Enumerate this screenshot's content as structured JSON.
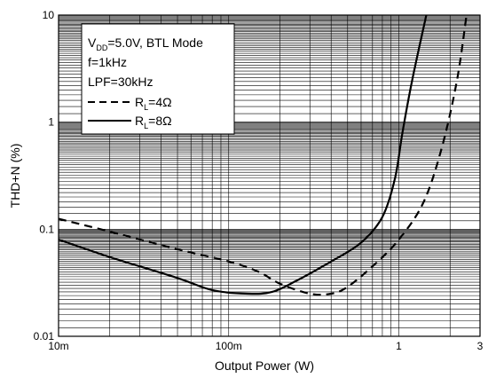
{
  "chart_data": {
    "type": "line",
    "xlabel": "Output Power (W)",
    "ylabel": "THD+N (%)",
    "xscale": "log",
    "yscale": "log",
    "xlim": [
      0.01,
      3
    ],
    "ylim": [
      0.01,
      10
    ],
    "grid": true,
    "x_tick_labels": [
      "10m",
      "100m",
      "1",
      "3"
    ],
    "y_tick_labels": [
      "0.01",
      "0.1",
      "1",
      "10"
    ],
    "legend": {
      "placement": "top-left",
      "conditions": [
        {
          "main": "V",
          "sub": "DD",
          "rest": "=5.0V, BTL Mode"
        },
        {
          "main": "f=1kHz",
          "sub": "",
          "rest": ""
        },
        {
          "main": "LPF=30kHz",
          "sub": "",
          "rest": ""
        }
      ]
    },
    "series": [
      {
        "label_main": "R",
        "label_sub": "L",
        "label_rest": "=4Ω",
        "line_style": "dashed",
        "points": [
          [
            0.01,
            0.125
          ],
          [
            0.02,
            0.095
          ],
          [
            0.05,
            0.065
          ],
          [
            0.1,
            0.05
          ],
          [
            0.15,
            0.04
          ],
          [
            0.2,
            0.031
          ],
          [
            0.3,
            0.025
          ],
          [
            0.4,
            0.025
          ],
          [
            0.5,
            0.029
          ],
          [
            0.7,
            0.045
          ],
          [
            1.0,
            0.08
          ],
          [
            1.4,
            0.18
          ],
          [
            1.8,
            0.6
          ],
          [
            2.2,
            2.5
          ],
          [
            2.5,
            10
          ]
        ]
      },
      {
        "label_main": "R",
        "label_sub": "L",
        "label_rest": "=8Ω",
        "line_style": "solid",
        "points": [
          [
            0.01,
            0.08
          ],
          [
            0.02,
            0.055
          ],
          [
            0.05,
            0.035
          ],
          [
            0.08,
            0.027
          ],
          [
            0.13,
            0.025
          ],
          [
            0.18,
            0.026
          ],
          [
            0.25,
            0.033
          ],
          [
            0.4,
            0.05
          ],
          [
            0.6,
            0.075
          ],
          [
            0.8,
            0.13
          ],
          [
            0.95,
            0.3
          ],
          [
            1.05,
            0.8
          ],
          [
            1.2,
            2.5
          ],
          [
            1.45,
            10
          ]
        ]
      }
    ]
  }
}
